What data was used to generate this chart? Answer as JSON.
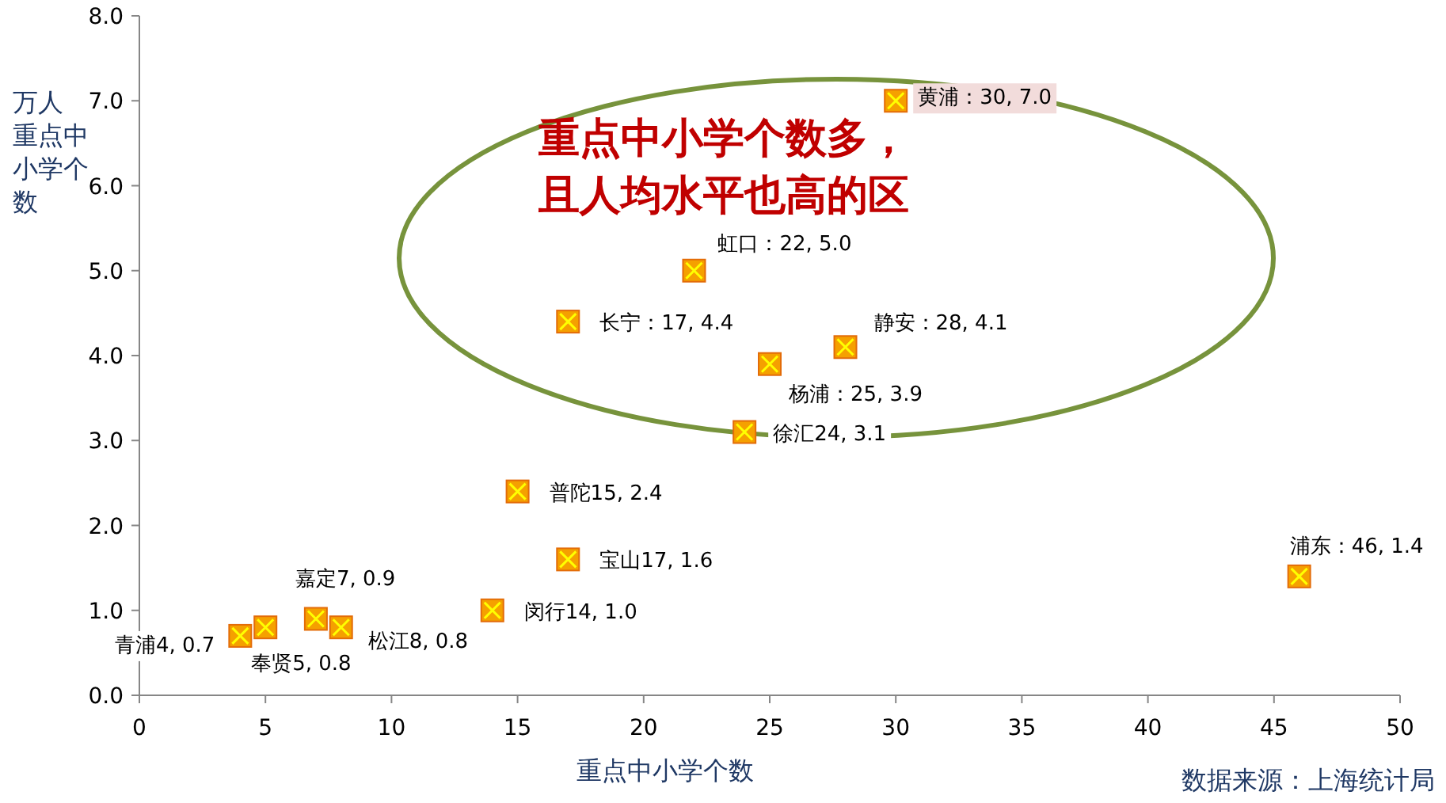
{
  "chart_data": {
    "type": "scatter",
    "xlabel": "重点中小学个数",
    "ylabel": "万人重点中小学个数",
    "marker": "square",
    "color": "#f5a000",
    "grid": false,
    "xlim": [
      0,
      50
    ],
    "xticks": [
      0,
      5,
      10,
      15,
      20,
      25,
      30,
      35,
      40,
      45,
      50
    ],
    "ylim": [
      0,
      8
    ],
    "yticks": [
      {
        "value": 0,
        "label": "0.0"
      },
      {
        "value": 1,
        "label": "1.0"
      },
      {
        "value": 2,
        "label": "2.0"
      },
      {
        "value": 3,
        "label": "3.0"
      },
      {
        "value": 4,
        "label": "4.0"
      },
      {
        "value": 5,
        "label": "5.0"
      },
      {
        "value": 6,
        "label": "6.0"
      },
      {
        "value": 7,
        "label": "7.0"
      },
      {
        "value": 8,
        "label": "8.0"
      }
    ],
    "x": [
      30,
      22,
      17,
      28,
      25,
      24,
      15,
      17,
      14,
      46,
      7,
      8,
      5,
      4
    ],
    "values": [
      7.0,
      5.0,
      4.4,
      4.1,
      3.9,
      3.1,
      2.4,
      1.6,
      1.0,
      1.4,
      0.9,
      0.8,
      0.8,
      0.7
    ],
    "value_labels": [
      "黄浦：30, 7.0",
      "虹口：22, 5.0",
      "长宁：17, 4.4",
      "静安：28, 4.1",
      "杨浦：25, 3.9",
      "徐汇24, 3.1",
      "普陀15, 2.4",
      "宝山17, 1.6",
      "闵行14, 1.0",
      "浦东：46, 1.4",
      "嘉定7, 0.9",
      "松江8, 0.8",
      "奉贤5, 0.8",
      "青浦4, 0.7"
    ],
    "annotations": [
      "重点中小学个数多，",
      "且人均水平也高的区",
      "数据来源：上海统计局"
    ]
  }
}
